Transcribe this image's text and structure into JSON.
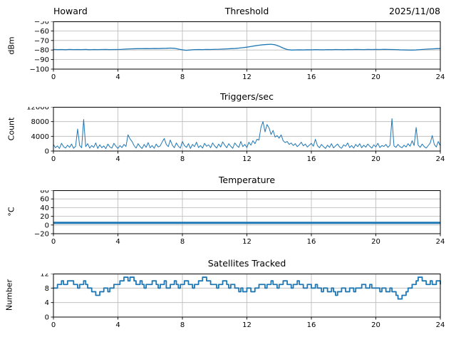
{
  "figure": {
    "background": "#ffffff",
    "line_color": "#1f77b4",
    "grid_color": "#b7b7b7",
    "spine_color": "#000000",
    "text_color": "#000000"
  },
  "chart_data": [
    {
      "type": "line",
      "title": "Threshold",
      "title_left": "Howard",
      "title_right": "2025/11/08",
      "ylabel": "dBm",
      "xlabel": "",
      "xlim": [
        0,
        24
      ],
      "ylim": [
        -100,
        -50
      ],
      "xticks": [
        0,
        4,
        8,
        12,
        16,
        20,
        24
      ],
      "yticks": [
        -50,
        -60,
        -70,
        -80,
        -90,
        -100
      ],
      "grid": true,
      "legend": "none",
      "line_width": 1.3,
      "x_step": 0.25,
      "values": [
        -79.4,
        -79.6,
        -79.5,
        -79.7,
        -79.4,
        -79.6,
        -79.5,
        -79.6,
        -79.4,
        -79.7,
        -79.5,
        -79.6,
        -79.5,
        -79.4,
        -79.6,
        -79.5,
        -79.5,
        -79.3,
        -79.0,
        -78.8,
        -78.7,
        -78.6,
        -78.6,
        -78.5,
        -78.6,
        -78.4,
        -78.5,
        -78.3,
        -78.2,
        -78.0,
        -78.2,
        -79.0,
        -79.8,
        -80.3,
        -79.9,
        -79.6,
        -79.5,
        -79.6,
        -79.4,
        -79.5,
        -79.3,
        -79.2,
        -79.0,
        -78.8,
        -78.6,
        -78.4,
        -78.0,
        -77.5,
        -77.0,
        -76.3,
        -75.6,
        -75.0,
        -74.5,
        -74.2,
        -74.0,
        -74.5,
        -76.0,
        -78.0,
        -79.5,
        -80.0,
        -79.9,
        -79.8,
        -79.9,
        -79.7,
        -79.8,
        -79.6,
        -79.7,
        -79.8,
        -79.6,
        -79.7,
        -79.5,
        -79.6,
        -79.7,
        -79.5,
        -79.6,
        -79.4,
        -79.5,
        -79.6,
        -79.4,
        -79.5,
        -79.4,
        -79.5,
        -79.3,
        -79.4,
        -79.5,
        -79.6,
        -79.8,
        -79.9,
        -80.0,
        -80.1,
        -79.9,
        -79.6,
        -79.3,
        -79.0,
        -78.8,
        -78.6,
        -78.5
      ]
    },
    {
      "type": "line",
      "title": "Triggers/sec",
      "ylabel": "Count",
      "xlabel": "",
      "xlim": [
        0,
        24
      ],
      "ylim": [
        0,
        12000
      ],
      "xticks": [
        0,
        4,
        8,
        12,
        16,
        20,
        24
      ],
      "yticks": [
        0,
        4000,
        8000,
        12000
      ],
      "grid": true,
      "legend": "none",
      "line_width": 1.0,
      "x_step": 0.125,
      "values": [
        1800,
        900,
        1400,
        700,
        2100,
        1200,
        800,
        1600,
        1000,
        1900,
        750,
        1300,
        6000,
        1500,
        900,
        8600,
        1200,
        2000,
        800,
        1500,
        1000,
        2200,
        700,
        1700,
        900,
        1400,
        650,
        1900,
        1100,
        800,
        2100,
        1300,
        700,
        1500,
        950,
        1800,
        1250,
        4400,
        3300,
        2600,
        1500,
        800,
        2000,
        1200,
        700,
        1800,
        1000,
        2300,
        900,
        1500,
        750,
        1900,
        1100,
        1400,
        2500,
        3400,
        1800,
        1200,
        3000,
        1600,
        900,
        2200,
        1300,
        800,
        2600,
        1500,
        1000,
        2000,
        700,
        1800,
        1200,
        2400,
        950,
        1500,
        800,
        2100,
        1300,
        1700,
        900,
        2200,
        1400,
        800,
        1900,
        1100,
        2500,
        1600,
        900,
        2000,
        1300,
        750,
        2200,
        1500,
        1000,
        2600,
        1200,
        1800,
        950,
        2400,
        1600,
        2800,
        2000,
        3200,
        3000,
        6500,
        8000,
        5200,
        7200,
        6300,
        4500,
        5600,
        3800,
        4200,
        3500,
        4400,
        2800,
        2300,
        2600,
        1800,
        2200,
        1500,
        2000,
        1200,
        1700,
        2400,
        1400,
        1900,
        1100,
        1600,
        2100,
        1300,
        3200,
        1500,
        900,
        1800,
        1200,
        700,
        1600,
        1000,
        2000,
        850,
        1400,
        1900,
        1100,
        750,
        1700,
        1300,
        2200,
        950,
        1500,
        800,
        1800,
        1200,
        2000,
        900,
        1600,
        1050,
        1900,
        1300,
        800,
        1700,
        1100,
        2100,
        950,
        1500,
        1250,
        1800,
        1000,
        1600,
        8800,
        1400,
        1000,
        1800,
        1200,
        900,
        1600,
        1100,
        2000,
        1300,
        2800,
        1500,
        6400,
        1600,
        1000,
        1900,
        1200,
        800,
        1500,
        2200,
        4200,
        1800,
        1100,
        2600,
        1400
      ]
    },
    {
      "type": "line",
      "title": "Temperature",
      "ylabel": "°C",
      "xlabel": "",
      "xlim": [
        0,
        24
      ],
      "ylim": [
        -20,
        80
      ],
      "xticks": [
        0,
        4,
        8,
        12,
        16,
        20,
        24
      ],
      "yticks": [
        -20,
        0,
        20,
        40,
        60,
        80
      ],
      "grid": true,
      "legend": "none",
      "line_width": 3,
      "x_step": 2,
      "values": [
        5,
        5,
        5,
        5,
        5,
        5,
        5,
        5,
        5,
        5,
        5,
        5,
        5
      ]
    },
    {
      "type": "step",
      "title": "Satellites Tracked",
      "ylabel": "Number",
      "xlabel": "",
      "xlim": [
        0,
        24
      ],
      "ylim": [
        0,
        12
      ],
      "xticks": [
        0,
        4,
        8,
        12,
        16,
        20,
        24
      ],
      "yticks": [
        0,
        4,
        8,
        12
      ],
      "grid": true,
      "legend": "none",
      "line_width": 1.8,
      "x_step": 0.125,
      "values": [
        8,
        8,
        9,
        9,
        10,
        9,
        9,
        10,
        10,
        10,
        9,
        9,
        8,
        9,
        9,
        10,
        9,
        8,
        8,
        7,
        7,
        6,
        6,
        7,
        7,
        8,
        8,
        7,
        8,
        8,
        9,
        9,
        9,
        10,
        10,
        11,
        11,
        10,
        11,
        11,
        10,
        9,
        9,
        10,
        9,
        8,
        9,
        9,
        9,
        10,
        10,
        9,
        8,
        9,
        9,
        10,
        8,
        8,
        9,
        9,
        10,
        9,
        8,
        9,
        9,
        10,
        10,
        9,
        9,
        8,
        9,
        9,
        10,
        10,
        11,
        11,
        10,
        10,
        9,
        9,
        9,
        8,
        9,
        9,
        10,
        10,
        9,
        8,
        9,
        9,
        8,
        8,
        7,
        8,
        7,
        7,
        8,
        8,
        7,
        7,
        8,
        8,
        9,
        9,
        9,
        8,
        9,
        9,
        10,
        9,
        9,
        8,
        9,
        9,
        10,
        10,
        9,
        9,
        8,
        9,
        9,
        10,
        9,
        9,
        8,
        8,
        9,
        9,
        8,
        8,
        9,
        8,
        8,
        7,
        8,
        8,
        7,
        7,
        8,
        7,
        6,
        7,
        7,
        8,
        8,
        7,
        7,
        8,
        8,
        7,
        8,
        8,
        8,
        9,
        9,
        8,
        8,
        9,
        8,
        8,
        8,
        8,
        7,
        8,
        8,
        7,
        7,
        8,
        7,
        7,
        6,
        5,
        5,
        6,
        6,
        7,
        8,
        8,
        9,
        9,
        10,
        11,
        11,
        10,
        10,
        9,
        9,
        10,
        9,
        9,
        10,
        10,
        9
      ]
    }
  ]
}
